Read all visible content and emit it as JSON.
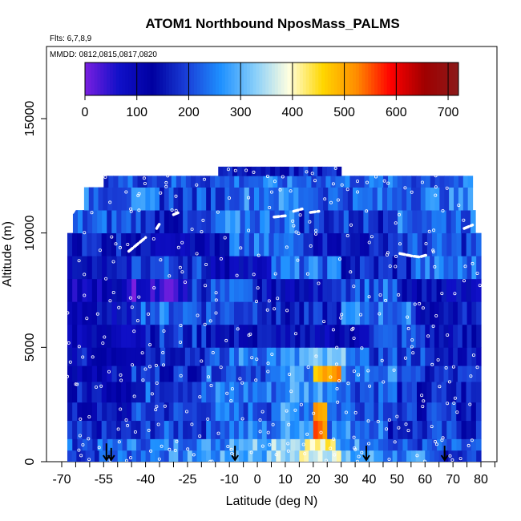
{
  "chart_data": {
    "type": "heatmap",
    "title": "ATOM1 Northbound NposMass_PALMS",
    "flights_label": "Flts: 6,7,8,9",
    "dates_label": "MMDD: 0812,0815,0817,0820",
    "xlabel": "Latitude (deg N)",
    "ylabel": "Altitude (m)",
    "xlim": [
      -70,
      85
    ],
    "ylim": [
      0,
      17500
    ],
    "x_ticks": [
      -70,
      -55,
      -40,
      -25,
      -10,
      0,
      10,
      20,
      30,
      40,
      50,
      60,
      70,
      80
    ],
    "x_tick_labels": [
      "-70",
      "-55",
      "-40",
      "-25",
      "-10",
      "0",
      "10",
      "20",
      "30",
      "40",
      "50",
      "60",
      "70",
      "80"
    ],
    "x_minor_ticks": [
      -65,
      -60,
      -50,
      -45,
      -35,
      -30,
      -20,
      -15,
      -5,
      5,
      15,
      25,
      35,
      45,
      55,
      65,
      75,
      85
    ],
    "y_ticks": [
      0,
      5000,
      10000,
      15000
    ],
    "y_tick_labels": [
      "0",
      "5000",
      "10000",
      "15000"
    ],
    "colorbar": {
      "min": 0,
      "max": 720,
      "ticks": [
        0,
        100,
        200,
        300,
        400,
        500,
        600,
        700
      ],
      "tick_labels": [
        "0",
        "100",
        "200",
        "300",
        "400",
        "500",
        "600",
        "700"
      ],
      "colors": [
        "#7a1fe0",
        "#1010c8",
        "#0000a0",
        "#1a3fd8",
        "#1e90ff",
        "#87cefa",
        "#ffffe0",
        "#ffd700",
        "#ff8c00",
        "#ff0000",
        "#a00000",
        "#8b1a1a"
      ]
    },
    "tiles": [
      {
        "x0": -68,
        "x1": -55,
        "y0": 0,
        "y1": 500,
        "v": 200
      },
      {
        "x0": -55,
        "x1": -40,
        "y0": 0,
        "y1": 500,
        "v": 230
      },
      {
        "x0": -40,
        "x1": -25,
        "y0": 0,
        "y1": 500,
        "v": 250
      },
      {
        "x0": -25,
        "x1": -10,
        "y0": 0,
        "y1": 500,
        "v": 270
      },
      {
        "x0": -10,
        "x1": 5,
        "y0": 0,
        "y1": 500,
        "v": 300
      },
      {
        "x0": 5,
        "x1": 15,
        "y0": 0,
        "y1": 500,
        "v": 340
      },
      {
        "x0": 15,
        "x1": 30,
        "y0": 0,
        "y1": 500,
        "v": 390
      },
      {
        "x0": 30,
        "x1": 45,
        "y0": 0,
        "y1": 500,
        "v": 280
      },
      {
        "x0": 45,
        "x1": 60,
        "y0": 0,
        "y1": 500,
        "v": 250
      },
      {
        "x0": 60,
        "x1": 80,
        "y0": 0,
        "y1": 500,
        "v": 190
      },
      {
        "x0": -68,
        "x1": -50,
        "y0": 500,
        "y1": 1000,
        "v": 210
      },
      {
        "x0": -50,
        "x1": -30,
        "y0": 500,
        "y1": 1000,
        "v": 240
      },
      {
        "x0": -30,
        "x1": -10,
        "y0": 500,
        "y1": 1000,
        "v": 260
      },
      {
        "x0": -10,
        "x1": 5,
        "y0": 500,
        "y1": 1000,
        "v": 320
      },
      {
        "x0": 5,
        "x1": 17,
        "y0": 500,
        "y1": 1000,
        "v": 360
      },
      {
        "x0": 17,
        "x1": 28,
        "y0": 500,
        "y1": 1000,
        "v": 400
      },
      {
        "x0": 28,
        "x1": 45,
        "y0": 500,
        "y1": 1000,
        "v": 270
      },
      {
        "x0": 45,
        "x1": 80,
        "y0": 500,
        "y1": 1000,
        "v": 200
      },
      {
        "x0": -68,
        "x1": -40,
        "y0": 1000,
        "y1": 1800,
        "v": 160
      },
      {
        "x0": -40,
        "x1": -15,
        "y0": 1000,
        "y1": 1800,
        "v": 200
      },
      {
        "x0": -15,
        "x1": 10,
        "y0": 1000,
        "y1": 1800,
        "v": 240
      },
      {
        "x0": 10,
        "x1": 20,
        "y0": 1000,
        "y1": 1800,
        "v": 300
      },
      {
        "x0": 20,
        "x1": 25,
        "y0": 1000,
        "y1": 1800,
        "v": 560
      },
      {
        "x0": 25,
        "x1": 45,
        "y0": 1000,
        "y1": 1800,
        "v": 250
      },
      {
        "x0": 45,
        "x1": 80,
        "y0": 1000,
        "y1": 1800,
        "v": 180
      },
      {
        "x0": -68,
        "x1": -45,
        "y0": 1800,
        "y1": 2600,
        "v": 140
      },
      {
        "x0": -45,
        "x1": -20,
        "y0": 1800,
        "y1": 2600,
        "v": 190
      },
      {
        "x0": -20,
        "x1": 5,
        "y0": 1800,
        "y1": 2600,
        "v": 220
      },
      {
        "x0": 5,
        "x1": 20,
        "y0": 1800,
        "y1": 2600,
        "v": 260
      },
      {
        "x0": 20,
        "x1": 25,
        "y0": 1800,
        "y1": 2600,
        "v": 520
      },
      {
        "x0": 25,
        "x1": 50,
        "y0": 1800,
        "y1": 2600,
        "v": 230
      },
      {
        "x0": 50,
        "x1": 80,
        "y0": 1800,
        "y1": 2600,
        "v": 170
      },
      {
        "x0": -68,
        "x1": -40,
        "y0": 2600,
        "y1": 3500,
        "v": 150
      },
      {
        "x0": -40,
        "x1": -15,
        "y0": 2600,
        "y1": 3500,
        "v": 210
      },
      {
        "x0": -15,
        "x1": 10,
        "y0": 2600,
        "y1": 3500,
        "v": 240
      },
      {
        "x0": 10,
        "x1": 30,
        "y0": 2600,
        "y1": 3500,
        "v": 280
      },
      {
        "x0": 30,
        "x1": 50,
        "y0": 2600,
        "y1": 3500,
        "v": 220
      },
      {
        "x0": 50,
        "x1": 80,
        "y0": 2600,
        "y1": 3500,
        "v": 160
      },
      {
        "x0": -68,
        "x1": -45,
        "y0": 3500,
        "y1": 4200,
        "v": 130
      },
      {
        "x0": -45,
        "x1": -20,
        "y0": 3500,
        "y1": 4200,
        "v": 180
      },
      {
        "x0": -20,
        "x1": 10,
        "y0": 3500,
        "y1": 4200,
        "v": 220
      },
      {
        "x0": 10,
        "x1": 20,
        "y0": 3500,
        "y1": 4200,
        "v": 270
      },
      {
        "x0": 20,
        "x1": 30,
        "y0": 3500,
        "y1": 4200,
        "v": 480
      },
      {
        "x0": 30,
        "x1": 55,
        "y0": 3500,
        "y1": 4200,
        "v": 240
      },
      {
        "x0": 55,
        "x1": 80,
        "y0": 3500,
        "y1": 4200,
        "v": 170
      },
      {
        "x0": -68,
        "x1": -40,
        "y0": 4200,
        "y1": 5000,
        "v": 140
      },
      {
        "x0": -40,
        "x1": -10,
        "y0": 4200,
        "y1": 5000,
        "v": 190
      },
      {
        "x0": -10,
        "x1": 15,
        "y0": 4200,
        "y1": 5000,
        "v": 250
      },
      {
        "x0": 15,
        "x1": 35,
        "y0": 4200,
        "y1": 5000,
        "v": 290
      },
      {
        "x0": 35,
        "x1": 60,
        "y0": 4200,
        "y1": 5000,
        "v": 200
      },
      {
        "x0": 60,
        "x1": 80,
        "y0": 4200,
        "y1": 5000,
        "v": 150
      },
      {
        "x0": -68,
        "x1": -40,
        "y0": 5000,
        "y1": 6000,
        "v": 110
      },
      {
        "x0": -40,
        "x1": -15,
        "y0": 5000,
        "y1": 6000,
        "v": 180
      },
      {
        "x0": -15,
        "x1": 10,
        "y0": 5000,
        "y1": 6000,
        "v": 140
      },
      {
        "x0": 10,
        "x1": 40,
        "y0": 5000,
        "y1": 6000,
        "v": 120
      },
      {
        "x0": 40,
        "x1": 60,
        "y0": 5000,
        "y1": 6000,
        "v": 200
      },
      {
        "x0": 60,
        "x1": 80,
        "y0": 5000,
        "y1": 6000,
        "v": 140
      },
      {
        "x0": -68,
        "x1": -45,
        "y0": 6000,
        "y1": 7000,
        "v": 120
      },
      {
        "x0": -45,
        "x1": -20,
        "y0": 6000,
        "y1": 7000,
        "v": 230
      },
      {
        "x0": -20,
        "x1": 5,
        "y0": 6000,
        "y1": 7000,
        "v": 210
      },
      {
        "x0": 5,
        "x1": 30,
        "y0": 6000,
        "y1": 7000,
        "v": 160
      },
      {
        "x0": 30,
        "x1": 55,
        "y0": 6000,
        "y1": 7000,
        "v": 240
      },
      {
        "x0": 55,
        "x1": 80,
        "y0": 6000,
        "y1": 7000,
        "v": 150
      },
      {
        "x0": -68,
        "x1": -45,
        "y0": 7000,
        "y1": 8000,
        "v": 100
      },
      {
        "x0": -45,
        "x1": -25,
        "y0": 7000,
        "y1": 8000,
        "v": 40
      },
      {
        "x0": -25,
        "x1": 0,
        "y0": 7000,
        "y1": 8000,
        "v": 200
      },
      {
        "x0": 0,
        "x1": 25,
        "y0": 7000,
        "y1": 8000,
        "v": 130
      },
      {
        "x0": 25,
        "x1": 50,
        "y0": 7000,
        "y1": 8000,
        "v": 220
      },
      {
        "x0": 50,
        "x1": 80,
        "y0": 7000,
        "y1": 8000,
        "v": 120
      },
      {
        "x0": -68,
        "x1": -45,
        "y0": 8000,
        "y1": 9000,
        "v": 130
      },
      {
        "x0": -45,
        "x1": -20,
        "y0": 8000,
        "y1": 9000,
        "v": 200
      },
      {
        "x0": -20,
        "x1": 5,
        "y0": 8000,
        "y1": 9000,
        "v": 120
      },
      {
        "x0": 5,
        "x1": 30,
        "y0": 8000,
        "y1": 9000,
        "v": 230
      },
      {
        "x0": 30,
        "x1": 55,
        "y0": 8000,
        "y1": 9000,
        "v": 170
      },
      {
        "x0": 55,
        "x1": 80,
        "y0": 8000,
        "y1": 9000,
        "v": 230
      },
      {
        "x0": -68,
        "x1": -40,
        "y0": 9000,
        "y1": 10000,
        "v": 170
      },
      {
        "x0": -40,
        "x1": -10,
        "y0": 9000,
        "y1": 10000,
        "v": 120
      },
      {
        "x0": -10,
        "x1": 20,
        "y0": 9000,
        "y1": 10000,
        "v": 220
      },
      {
        "x0": 20,
        "x1": 45,
        "y0": 9000,
        "y1": 10000,
        "v": 150
      },
      {
        "x0": 45,
        "x1": 80,
        "y0": 9000,
        "y1": 10000,
        "v": 200
      },
      {
        "x0": -66,
        "x1": -40,
        "y0": 10000,
        "y1": 11000,
        "v": 210
      },
      {
        "x0": -40,
        "x1": -15,
        "y0": 10000,
        "y1": 11000,
        "v": 170
      },
      {
        "x0": -15,
        "x1": 15,
        "y0": 10000,
        "y1": 11000,
        "v": 240
      },
      {
        "x0": 15,
        "x1": 45,
        "y0": 10000,
        "y1": 11000,
        "v": 190
      },
      {
        "x0": 45,
        "x1": 78,
        "y0": 10000,
        "y1": 11000,
        "v": 230
      },
      {
        "x0": -62,
        "x1": -35,
        "y0": 11000,
        "y1": 12000,
        "v": 230
      },
      {
        "x0": -35,
        "x1": -10,
        "y0": 11000,
        "y1": 12000,
        "v": 200
      },
      {
        "x0": -10,
        "x1": 20,
        "y0": 11000,
        "y1": 12000,
        "v": 250
      },
      {
        "x0": 20,
        "x1": 50,
        "y0": 11000,
        "y1": 12000,
        "v": 220
      },
      {
        "x0": 50,
        "x1": 77,
        "y0": 11000,
        "y1": 12000,
        "v": 240
      },
      {
        "x0": -55,
        "x1": -10,
        "y0": 12000,
        "y1": 12500,
        "v": 210
      },
      {
        "x0": -10,
        "x1": 40,
        "y0": 12000,
        "y1": 12500,
        "v": 230
      },
      {
        "x0": 40,
        "x1": 77,
        "y0": 12000,
        "y1": 12500,
        "v": 220
      },
      {
        "x0": -14,
        "x1": 30,
        "y0": 12500,
        "y1": 12900,
        "v": 160
      }
    ],
    "white_tracks": [
      [
        [
          -66,
          10900
        ],
        [
          -65,
          11100
        ],
        [
          -64,
          11200
        ]
      ],
      [
        [
          -46,
          9200
        ],
        [
          -44,
          9400
        ],
        [
          -42,
          9600
        ],
        [
          -40,
          9800
        ]
      ],
      [
        [
          -36,
          10200
        ],
        [
          -35,
          10400
        ]
      ],
      [
        [
          -30,
          10800
        ],
        [
          -28,
          10900
        ]
      ],
      [
        [
          6,
          10700
        ],
        [
          10,
          10750
        ]
      ],
      [
        [
          13,
          10950
        ],
        [
          16,
          11050
        ]
      ],
      [
        [
          19,
          10900
        ],
        [
          22,
          10950
        ]
      ],
      [
        [
          51,
          9100
        ],
        [
          55,
          9000
        ],
        [
          58,
          8950
        ],
        [
          61,
          9050
        ]
      ],
      [
        [
          74,
          10200
        ],
        [
          77,
          10350
        ]
      ]
    ],
    "markers": [
      {
        "x": -54,
        "from": 800,
        "to": 0
      },
      {
        "x": -54,
        "from": 600,
        "to": 0
      },
      {
        "x": -8,
        "from": 700,
        "to": 0
      },
      {
        "x": 39,
        "from": 700,
        "to": 0
      },
      {
        "x": 67,
        "from": 700,
        "to": 0
      }
    ]
  }
}
